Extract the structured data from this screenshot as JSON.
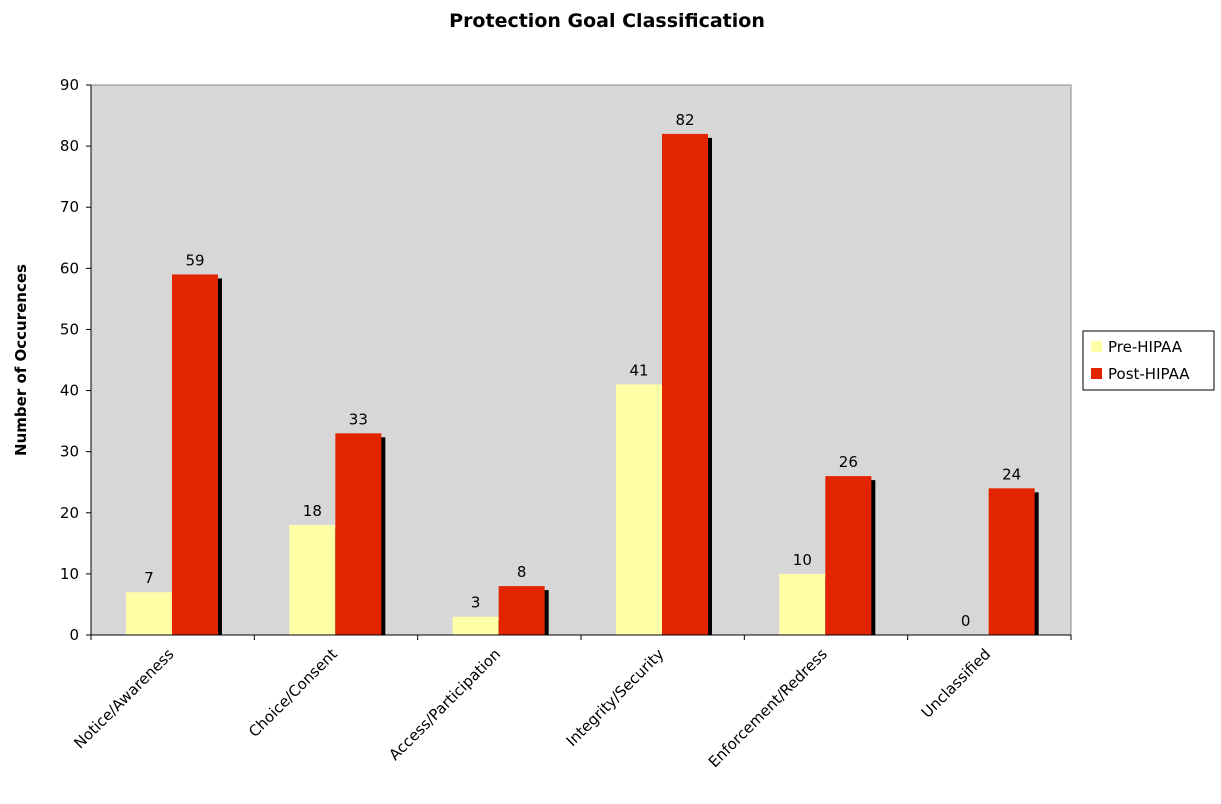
{
  "chart_data": {
    "type": "bar",
    "title": "Protection Goal Classification",
    "ylabel": "Number of Occurences",
    "xlabel": "",
    "ylim": [
      0,
      90
    ],
    "yticks": [
      0,
      10,
      20,
      30,
      40,
      50,
      60,
      70,
      80,
      90
    ],
    "categories": [
      "Notice/Awareness",
      "Choice/Consent",
      "Access/Participation",
      "Integrity/Security",
      "Enforcement/Redress",
      "Unclassified"
    ],
    "series": [
      {
        "name": "Pre-HIPAA",
        "color": "#ffffa8",
        "values": [
          7,
          18,
          3,
          41,
          10,
          0
        ]
      },
      {
        "name": "Post-HIPAA",
        "color": "#e32400",
        "values": [
          59,
          33,
          8,
          82,
          26,
          24
        ]
      }
    ],
    "plot_background": "#d7d7d7",
    "grid": false,
    "legend_position": "right"
  }
}
